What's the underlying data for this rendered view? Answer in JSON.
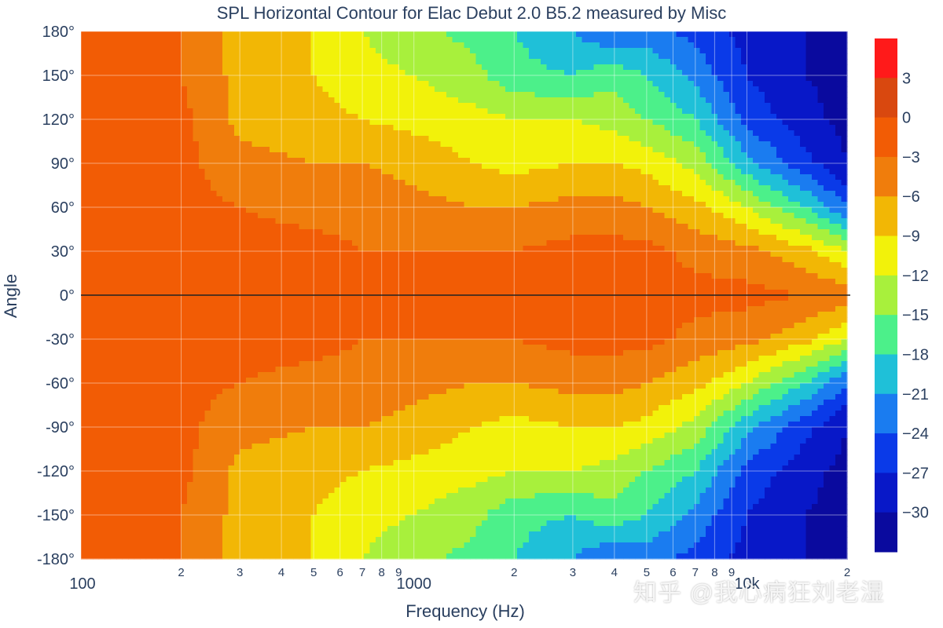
{
  "chart_data": {
    "type": "heatmap",
    "subtype": "contour",
    "title": "SPL Horizontal Contour for Elac Debut 2.0 B5.2 measured by Misc",
    "xlabel": "Frequency (Hz)",
    "ylabel": "Angle",
    "x_scale": "log",
    "xlim": [
      100,
      20000
    ],
    "ylim": [
      -180,
      180
    ],
    "x_tick_labels": [
      {
        "value": 100,
        "label": "100"
      },
      {
        "value": 200,
        "label": "2"
      },
      {
        "value": 300,
        "label": "3"
      },
      {
        "value": 400,
        "label": "4"
      },
      {
        "value": 500,
        "label": "5"
      },
      {
        "value": 600,
        "label": "6"
      },
      {
        "value": 700,
        "label": "7"
      },
      {
        "value": 800,
        "label": "8"
      },
      {
        "value": 900,
        "label": "9"
      },
      {
        "value": 1000,
        "label": "1000"
      },
      {
        "value": 2000,
        "label": "2"
      },
      {
        "value": 3000,
        "label": "3"
      },
      {
        "value": 4000,
        "label": "4"
      },
      {
        "value": 5000,
        "label": "5"
      },
      {
        "value": 6000,
        "label": "6"
      },
      {
        "value": 7000,
        "label": "7"
      },
      {
        "value": 8000,
        "label": "8"
      },
      {
        "value": 9000,
        "label": "9"
      },
      {
        "value": 10000,
        "label": "10k"
      },
      {
        "value": 20000,
        "label": "2"
      }
    ],
    "y_ticks": [
      180,
      150,
      120,
      90,
      60,
      30,
      0,
      -30,
      -60,
      -90,
      -120,
      -150,
      -180
    ],
    "y_tick_labels": [
      "180°",
      "150°",
      "120°",
      "90°",
      "60°",
      "30°",
      "0°",
      "-30°",
      "-60°",
      "-90°",
      "-120°",
      "-150°",
      "-180°"
    ],
    "colorbar": {
      "levels": [
        6,
        3,
        0,
        -3,
        -6,
        -9,
        -12,
        -15,
        -18,
        -21,
        -24,
        -27,
        -30,
        -33
      ],
      "tick_labels": [
        "3",
        "0",
        "−3",
        "−6",
        "−9",
        "−12",
        "−15",
        "−18",
        "−21",
        "−24",
        "−27",
        "−30"
      ],
      "colors": [
        "#ff1a1a",
        "#d9480f",
        "#f25c05",
        "#f07d0c",
        "#f2b705",
        "#f2f20a",
        "#a8f03c",
        "#4cf08a",
        "#1fc0d8",
        "#1a7cf0",
        "#0a3ae8",
        "#0818c8",
        "#0a0a9e"
      ]
    },
    "grid": true,
    "vertical_band_edges_hz": [
      200,
      250,
      300,
      1000,
      2000,
      4500,
      7000,
      11000,
      20000
    ],
    "vertical_band_spl_on_axis": [
      0,
      -3,
      -3,
      -3,
      -3,
      -2,
      -4,
      -8,
      -12
    ],
    "spl_db_contour_profile": {
      "frequency_hz": [
        100,
        150,
        200,
        300,
        500,
        700,
        1000,
        1500,
        2000,
        3000,
        4000,
        5000,
        7000,
        10000,
        15000,
        20000
      ],
      "angle_deg": [
        0,
        30,
        60,
        90,
        120,
        150,
        180
      ],
      "values": [
        [
          0,
          0,
          0,
          0,
          0,
          0,
          0
        ],
        [
          0,
          0,
          0,
          0,
          0,
          0,
          0
        ],
        [
          -1,
          -1,
          -2,
          -2,
          -2,
          -3,
          -3
        ],
        [
          -2,
          -2,
          -3,
          -5,
          -7,
          -7,
          -7
        ],
        [
          -2,
          -2,
          -4,
          -6,
          -8,
          -9,
          -9
        ],
        [
          -2,
          -3,
          -4,
          -6,
          -9,
          -11,
          -12
        ],
        [
          -2,
          -3,
          -5,
          -7,
          -10,
          -12,
          -14
        ],
        [
          -1,
          -3,
          -6,
          -9,
          -11,
          -14,
          -16
        ],
        [
          -1,
          -3,
          -6,
          -10,
          -12,
          -17,
          -18
        ],
        [
          -1,
          -2,
          -5,
          -9,
          -12,
          -18,
          -21
        ],
        [
          -1,
          -2,
          -5,
          -9,
          -13,
          -16,
          -24
        ],
        [
          -1,
          -2,
          -6,
          -10,
          -15,
          -18,
          -23
        ],
        [
          -2,
          -4,
          -8,
          -13,
          -18,
          -22,
          -25
        ],
        [
          -2,
          -5,
          -12,
          -20,
          -25,
          -27,
          -28
        ],
        [
          -3,
          -8,
          -18,
          -26,
          -29,
          -30,
          -30
        ],
        [
          -4,
          -12,
          -24,
          -30,
          -31,
          -31,
          -31
        ]
      ]
    }
  },
  "watermark": "知乎 @我心病狂刘老湿"
}
